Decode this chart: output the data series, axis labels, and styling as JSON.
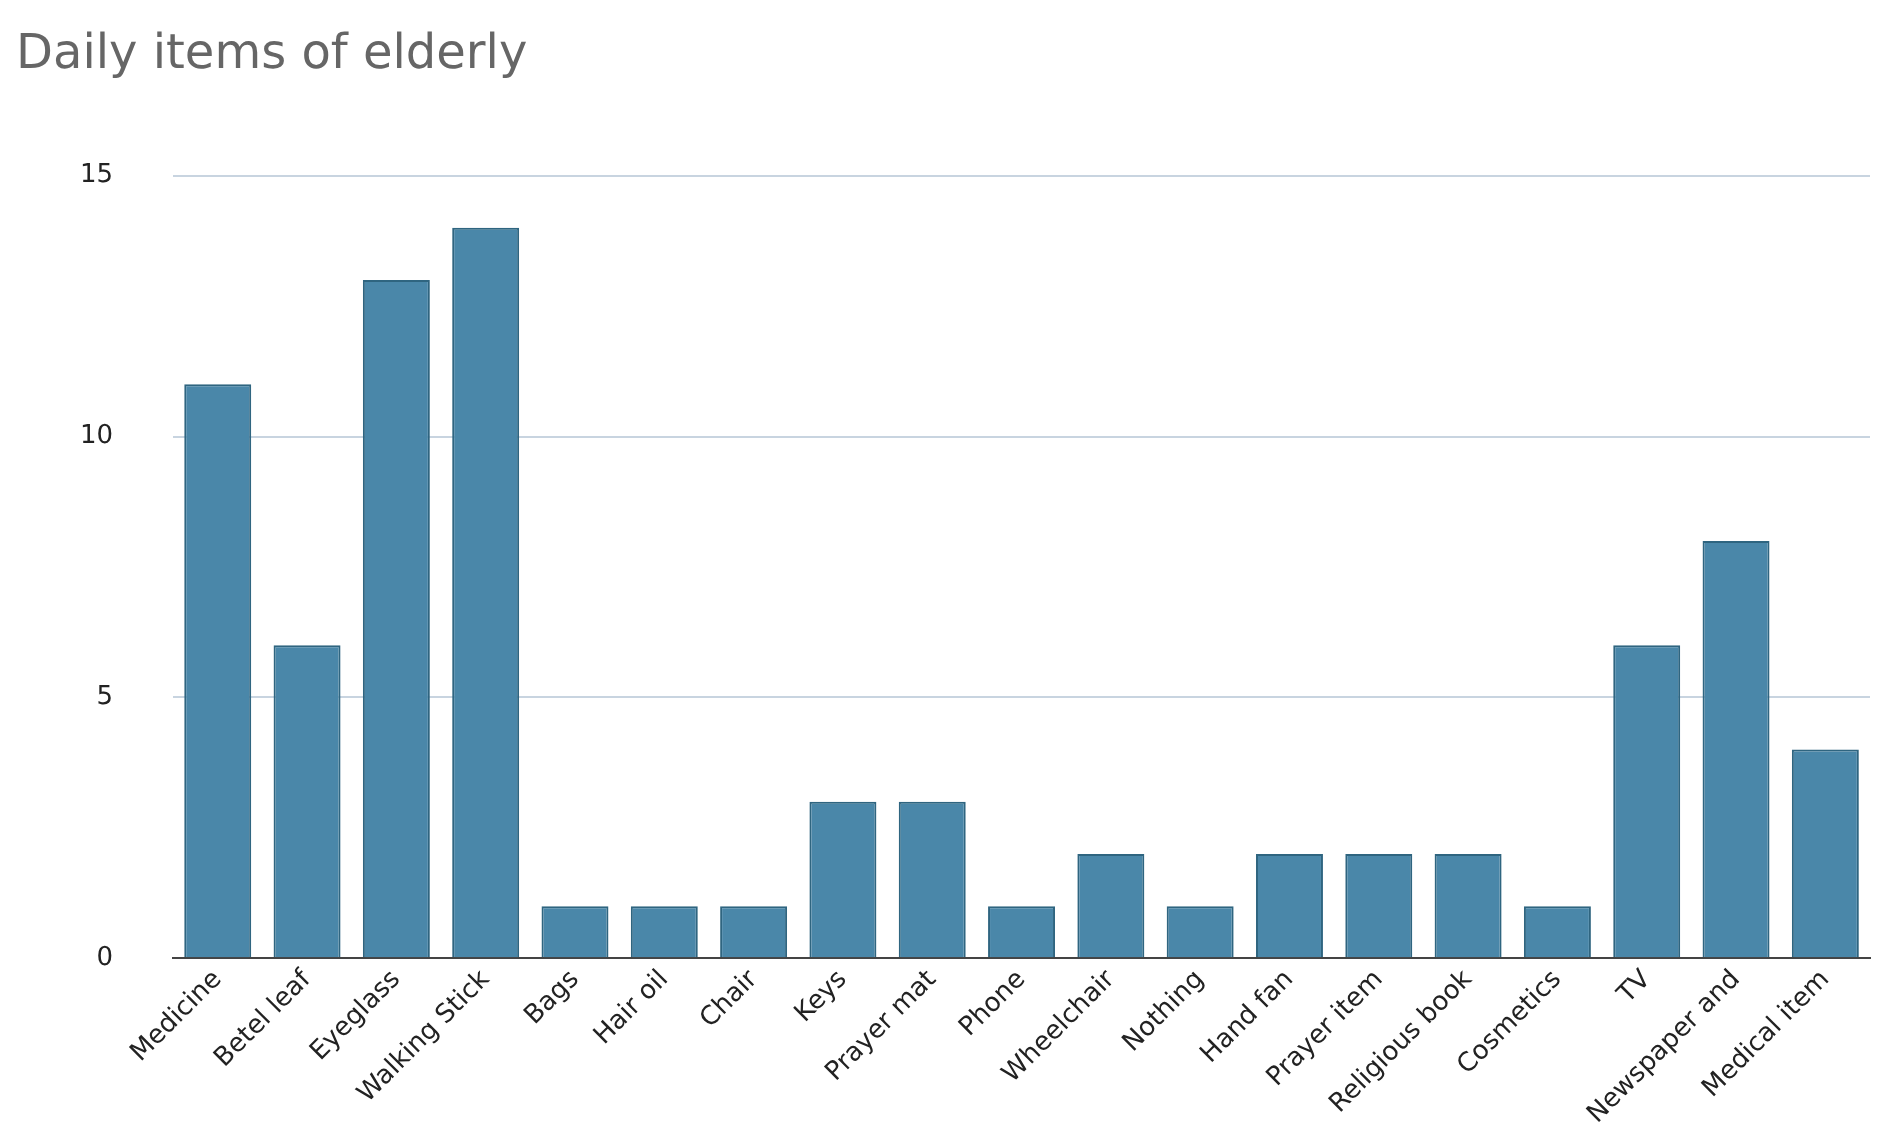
{
  "chart_data": {
    "type": "bar",
    "title": "Daily items of elderly",
    "categories": [
      "Medicine",
      "Betel leaf",
      "Eyeglass",
      "Walking Stick",
      "Bags",
      "Hair oil",
      "Chair",
      "Keys",
      "Prayer mat",
      "Phone",
      "Wheelchair",
      "Nothing",
      "Hand fan",
      "Prayer item",
      "Religious book",
      "Cosmetics",
      "TV",
      "Newspaper and",
      "Medical item"
    ],
    "values": [
      11,
      6,
      13,
      14,
      1,
      1,
      1,
      3,
      3,
      1,
      2,
      1,
      2,
      2,
      2,
      1,
      6,
      8,
      4
    ],
    "color": "#4a87a9",
    "ylim": [
      0,
      15
    ],
    "yticks": [
      0,
      5,
      10,
      15
    ],
    "grid": "y"
  }
}
